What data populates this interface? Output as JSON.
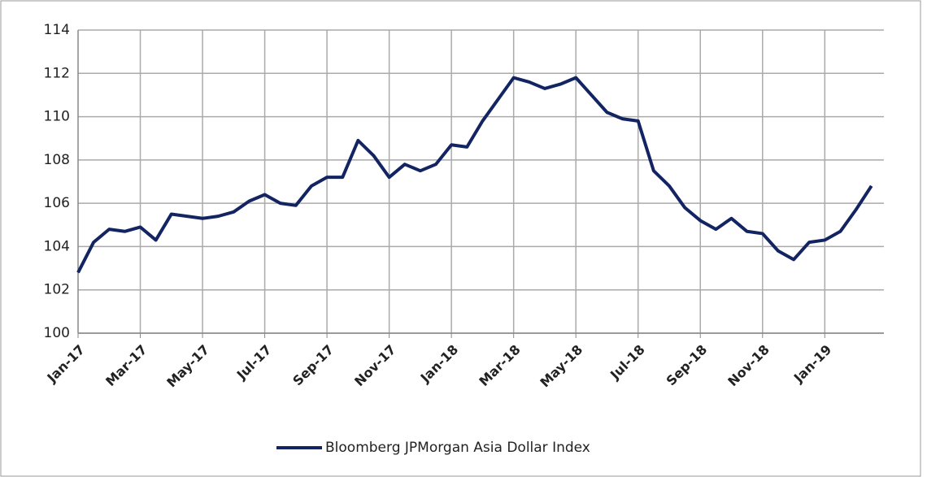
{
  "chart_data": {
    "type": "line",
    "categories": [
      "Jan-17",
      null,
      null,
      null,
      "Mar-17",
      null,
      null,
      null,
      "May-17",
      null,
      null,
      null,
      "Jul-17",
      null,
      null,
      null,
      "Sep-17",
      null,
      null,
      null,
      "Nov-17",
      null,
      null,
      null,
      "Jan-18",
      null,
      null,
      null,
      "Mar-18",
      null,
      null,
      null,
      "May-18",
      null,
      null,
      null,
      "Jul-18",
      null,
      null,
      null,
      "Sep-18",
      null,
      null,
      null,
      "Nov-18",
      null,
      null,
      null,
      "Jan-19",
      null,
      null,
      null
    ],
    "series": [
      {
        "name": "Bloomberg JPMorgan Asia Dollar Index",
        "color": "#132463",
        "values": [
          102.8,
          104.2,
          104.8,
          104.7,
          104.9,
          104.3,
          105.5,
          105.4,
          105.3,
          105.4,
          105.6,
          106.1,
          106.4,
          106.0,
          105.9,
          106.8,
          107.2,
          107.2,
          108.9,
          108.2,
          107.2,
          107.8,
          107.5,
          107.8,
          108.7,
          108.6,
          109.8,
          110.8,
          111.8,
          111.6,
          111.3,
          111.5,
          111.8,
          111.0,
          110.2,
          109.9,
          109.8,
          107.5,
          106.8,
          105.8,
          105.2,
          104.8,
          105.3,
          104.7,
          104.6,
          103.8,
          103.4,
          104.2,
          104.3,
          104.7,
          105.7,
          106.8
        ]
      }
    ],
    "ylim": [
      100,
      114
    ],
    "yticks": [
      100,
      102,
      104,
      106,
      108,
      110,
      112,
      114
    ],
    "grid": true,
    "legend": "bottom"
  }
}
